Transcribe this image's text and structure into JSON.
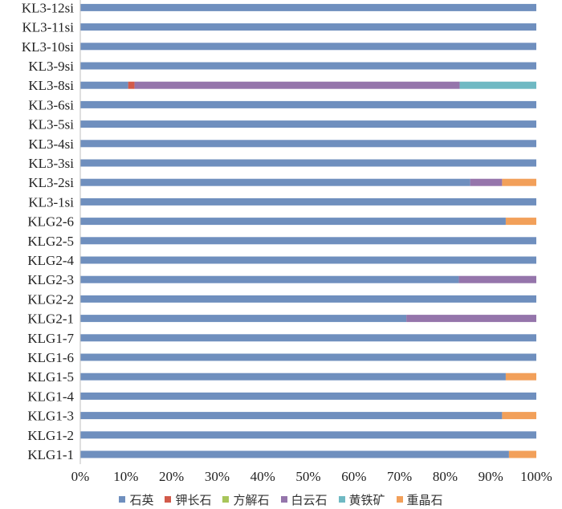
{
  "chart_data": {
    "type": "bar",
    "orientation": "horizontal",
    "stacked": true,
    "normalized": true,
    "title": "",
    "xlabel": "",
    "ylabel": "",
    "xlim": [
      0,
      100
    ],
    "x_ticks": [
      "0%",
      "10%",
      "20%",
      "30%",
      "40%",
      "50%",
      "60%",
      "70%",
      "80%",
      "90%",
      "100%"
    ],
    "grid": false,
    "legend_position": "bottom",
    "categories": [
      "KLG1-1",
      "KLG1-2",
      "KLG1-3",
      "KLG1-4",
      "KLG1-5",
      "KLG1-6",
      "KLG1-7",
      "KLG2-1",
      "KLG2-2",
      "KLG2-3",
      "KLG2-4",
      "KLG2-5",
      "KLG2-6",
      "KL3-1si",
      "KL3-2si",
      "KL3-3si",
      "KL3-4si",
      "KL3-5si",
      "KL3-6si",
      "KL3-8si",
      "KL3-9si",
      "KL3-10si",
      "KL3-11si",
      "KL3-12si"
    ],
    "series": [
      {
        "name": "石英",
        "color": "#6f8fbe",
        "values": [
          94,
          100,
          92.5,
          100,
          93.3,
          100,
          100,
          71.5,
          100,
          83,
          100,
          100,
          93.3,
          100,
          85.5,
          100,
          100,
          100,
          100,
          10.5,
          100,
          100,
          100,
          100
        ]
      },
      {
        "name": "钾长石",
        "color": "#d25a4a",
        "values": [
          0,
          0,
          0,
          0,
          0,
          0,
          0,
          0,
          0,
          0,
          0,
          0,
          0,
          0,
          0,
          0,
          0,
          0,
          0,
          1.4,
          0,
          0,
          0,
          0
        ]
      },
      {
        "name": "方解石",
        "color": "#a8c55a",
        "values": [
          0,
          0,
          0,
          0,
          0,
          0,
          0,
          0,
          0,
          0,
          0,
          0,
          0,
          0,
          0,
          0,
          0,
          0,
          0,
          0,
          0,
          0,
          0,
          0
        ]
      },
      {
        "name": "白云石",
        "color": "#9575ab",
        "values": [
          0,
          0,
          0,
          0,
          0,
          0,
          0,
          28.5,
          0,
          17,
          0,
          0,
          0,
          0,
          7,
          0,
          0,
          0,
          0,
          71.3,
          0,
          0,
          0,
          0
        ]
      },
      {
        "name": "黄铁矿",
        "color": "#6fb9c3",
        "values": [
          0,
          0,
          0,
          0,
          0,
          0,
          0,
          0,
          0,
          0,
          0,
          0,
          0,
          0,
          0,
          0,
          0,
          0,
          0,
          16.8,
          0,
          0,
          0,
          0
        ]
      },
      {
        "name": "重晶石",
        "color": "#f2a05a",
        "values": [
          6,
          0,
          7.5,
          0,
          6.7,
          0,
          0,
          0,
          0,
          0,
          0,
          0,
          6.7,
          0,
          7.5,
          0,
          0,
          0,
          0,
          0,
          0,
          0,
          0,
          0
        ]
      }
    ]
  }
}
